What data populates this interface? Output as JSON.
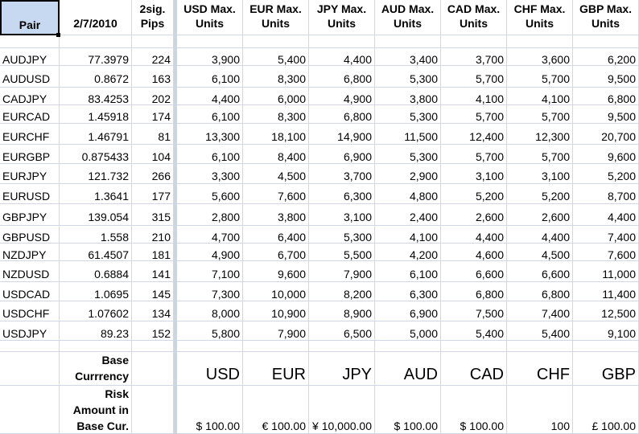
{
  "headers": {
    "pair": "Pair",
    "date": "2/7/2010",
    "pips": [
      "2sig.",
      "Pips"
    ],
    "currencies": [
      [
        "USD Max.",
        "Units"
      ],
      [
        "EUR Max.",
        "Units"
      ],
      [
        "JPY Max.",
        "Units"
      ],
      [
        "AUD Max.",
        "Units"
      ],
      [
        "CAD Max.",
        "Units"
      ],
      [
        "CHF Max.",
        "Units"
      ],
      [
        "GBP Max.",
        "Units"
      ]
    ]
  },
  "rows": [
    {
      "pair": "AUDJPY",
      "rate": "77.3979",
      "pips": "224",
      "units": [
        "3,900",
        "5,400",
        "4,400",
        "3,400",
        "3,700",
        "3,600",
        "6,200"
      ]
    },
    {
      "pair": "AUDUSD",
      "rate": "0.8672",
      "pips": "163",
      "units": [
        "6,100",
        "8,300",
        "6,800",
        "5,300",
        "5,700",
        "5,700",
        "9,500"
      ]
    },
    {
      "pair": "CADJPY",
      "rate": "83.4253",
      "pips": "202",
      "units": [
        "4,400",
        "6,000",
        "4,900",
        "3,800",
        "4,100",
        "4,100",
        "6,800"
      ]
    },
    {
      "pair": "EURCAD",
      "rate": "1.45918",
      "pips": "174",
      "units": [
        "6,100",
        "8,300",
        "6,800",
        "5,300",
        "5,700",
        "5,700",
        "9,500"
      ]
    },
    {
      "pair": "EURCHF",
      "rate": "1.46791",
      "pips": "81",
      "units": [
        "13,300",
        "18,100",
        "14,900",
        "11,500",
        "12,400",
        "12,300",
        "20,700"
      ]
    },
    {
      "pair": "EURGBP",
      "rate": "0.875433",
      "pips": "104",
      "units": [
        "6,100",
        "8,400",
        "6,900",
        "5,300",
        "5,700",
        "5,700",
        "9,600"
      ]
    },
    {
      "pair": "EURJPY",
      "rate": "121.732",
      "pips": "266",
      "units": [
        "3,300",
        "4,500",
        "3,700",
        "2,900",
        "3,100",
        "3,100",
        "5,200"
      ]
    },
    {
      "pair": "EURUSD",
      "rate": "1.3641",
      "pips": "177",
      "units": [
        "5,600",
        "7,600",
        "6,300",
        "4,800",
        "5,200",
        "5,200",
        "8,700"
      ]
    },
    {
      "pair": "GBPJPY",
      "rate": "139.054",
      "pips": "315",
      "units": [
        "2,800",
        "3,800",
        "3,100",
        "2,400",
        "2,600",
        "2,600",
        "4,400"
      ]
    },
    {
      "pair": "GBPUSD",
      "rate": "1.558",
      "pips": "210",
      "units": [
        "4,700",
        "6,400",
        "5,300",
        "4,100",
        "4,400",
        "4,400",
        "7,400"
      ]
    },
    {
      "pair": "NZDJPY",
      "rate": "61.4507",
      "pips": "181",
      "units": [
        "4,900",
        "6,700",
        "5,500",
        "4,200",
        "4,600",
        "4,500",
        "7,600"
      ]
    },
    {
      "pair": "NZDUSD",
      "rate": "0.6884",
      "pips": "141",
      "units": [
        "7,100",
        "9,600",
        "7,900",
        "6,100",
        "6,600",
        "6,600",
        "11,000"
      ]
    },
    {
      "pair": "USDCAD",
      "rate": "1.0695",
      "pips": "145",
      "units": [
        "7,300",
        "10,000",
        "8,200",
        "6,300",
        "6,800",
        "6,800",
        "11,400"
      ]
    },
    {
      "pair": "USDCHF",
      "rate": "1.07602",
      "pips": "134",
      "units": [
        "8,000",
        "10,900",
        "8,900",
        "6,900",
        "7,500",
        "7,400",
        "12,500"
      ]
    },
    {
      "pair": "USDJPY",
      "rate": "89.23",
      "pips": "152",
      "units": [
        "5,800",
        "7,900",
        "6,500",
        "5,000",
        "5,400",
        "5,400",
        "9,100"
      ]
    }
  ],
  "base_currency": {
    "label": [
      "Base",
      "Currrency"
    ],
    "values": [
      "USD",
      "EUR",
      "JPY",
      "AUD",
      "CAD",
      "CHF",
      "GBP"
    ]
  },
  "risk_amount": {
    "label": [
      "Risk",
      "Amount in",
      "Base Cur."
    ],
    "values": [
      "$ 100.00",
      "€ 100.00",
      "¥ 10,000.00",
      "$ 100.00",
      "$ 100.00",
      "100",
      "£ 100.00"
    ]
  },
  "colors": {
    "gridline": "#d0d7e5",
    "selection_fill": "#c6d9f1",
    "column_separator": "#cfd5de"
  }
}
